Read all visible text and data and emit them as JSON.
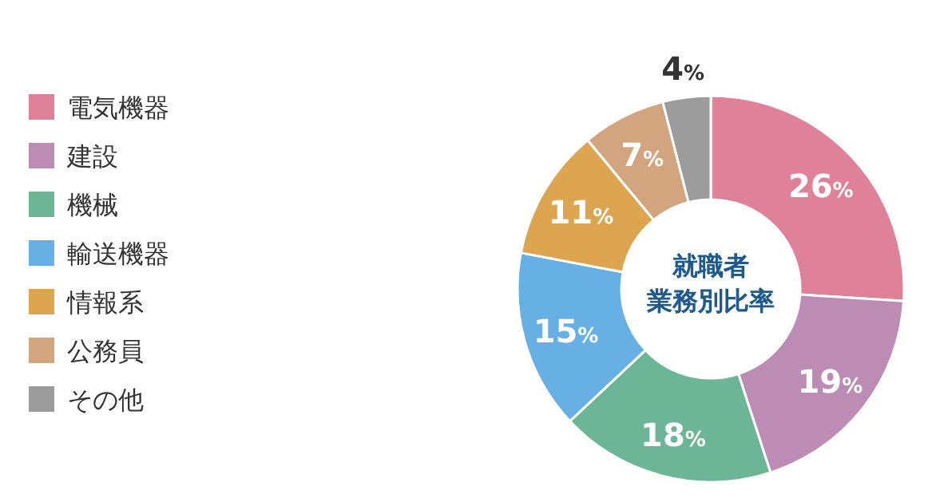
{
  "chart_data": {
    "type": "donut",
    "title": "就職者",
    "subtitle": "業務別比率",
    "categories": [
      "電気機器",
      "建設",
      "機械",
      "輸送機器",
      "情報系",
      "公務員",
      "その他"
    ],
    "values": [
      26,
      19,
      18,
      15,
      11,
      7,
      4
    ],
    "value_labels": [
      "26%",
      "19%",
      "18%",
      "15%",
      "11%",
      "7%",
      "4%"
    ],
    "colors": [
      "#de8199",
      "#bd8cb4",
      "#6db597",
      "#66b0e3",
      "#dea550",
      "#d3a57f",
      "#9c9c9c"
    ],
    "legend": "left"
  }
}
